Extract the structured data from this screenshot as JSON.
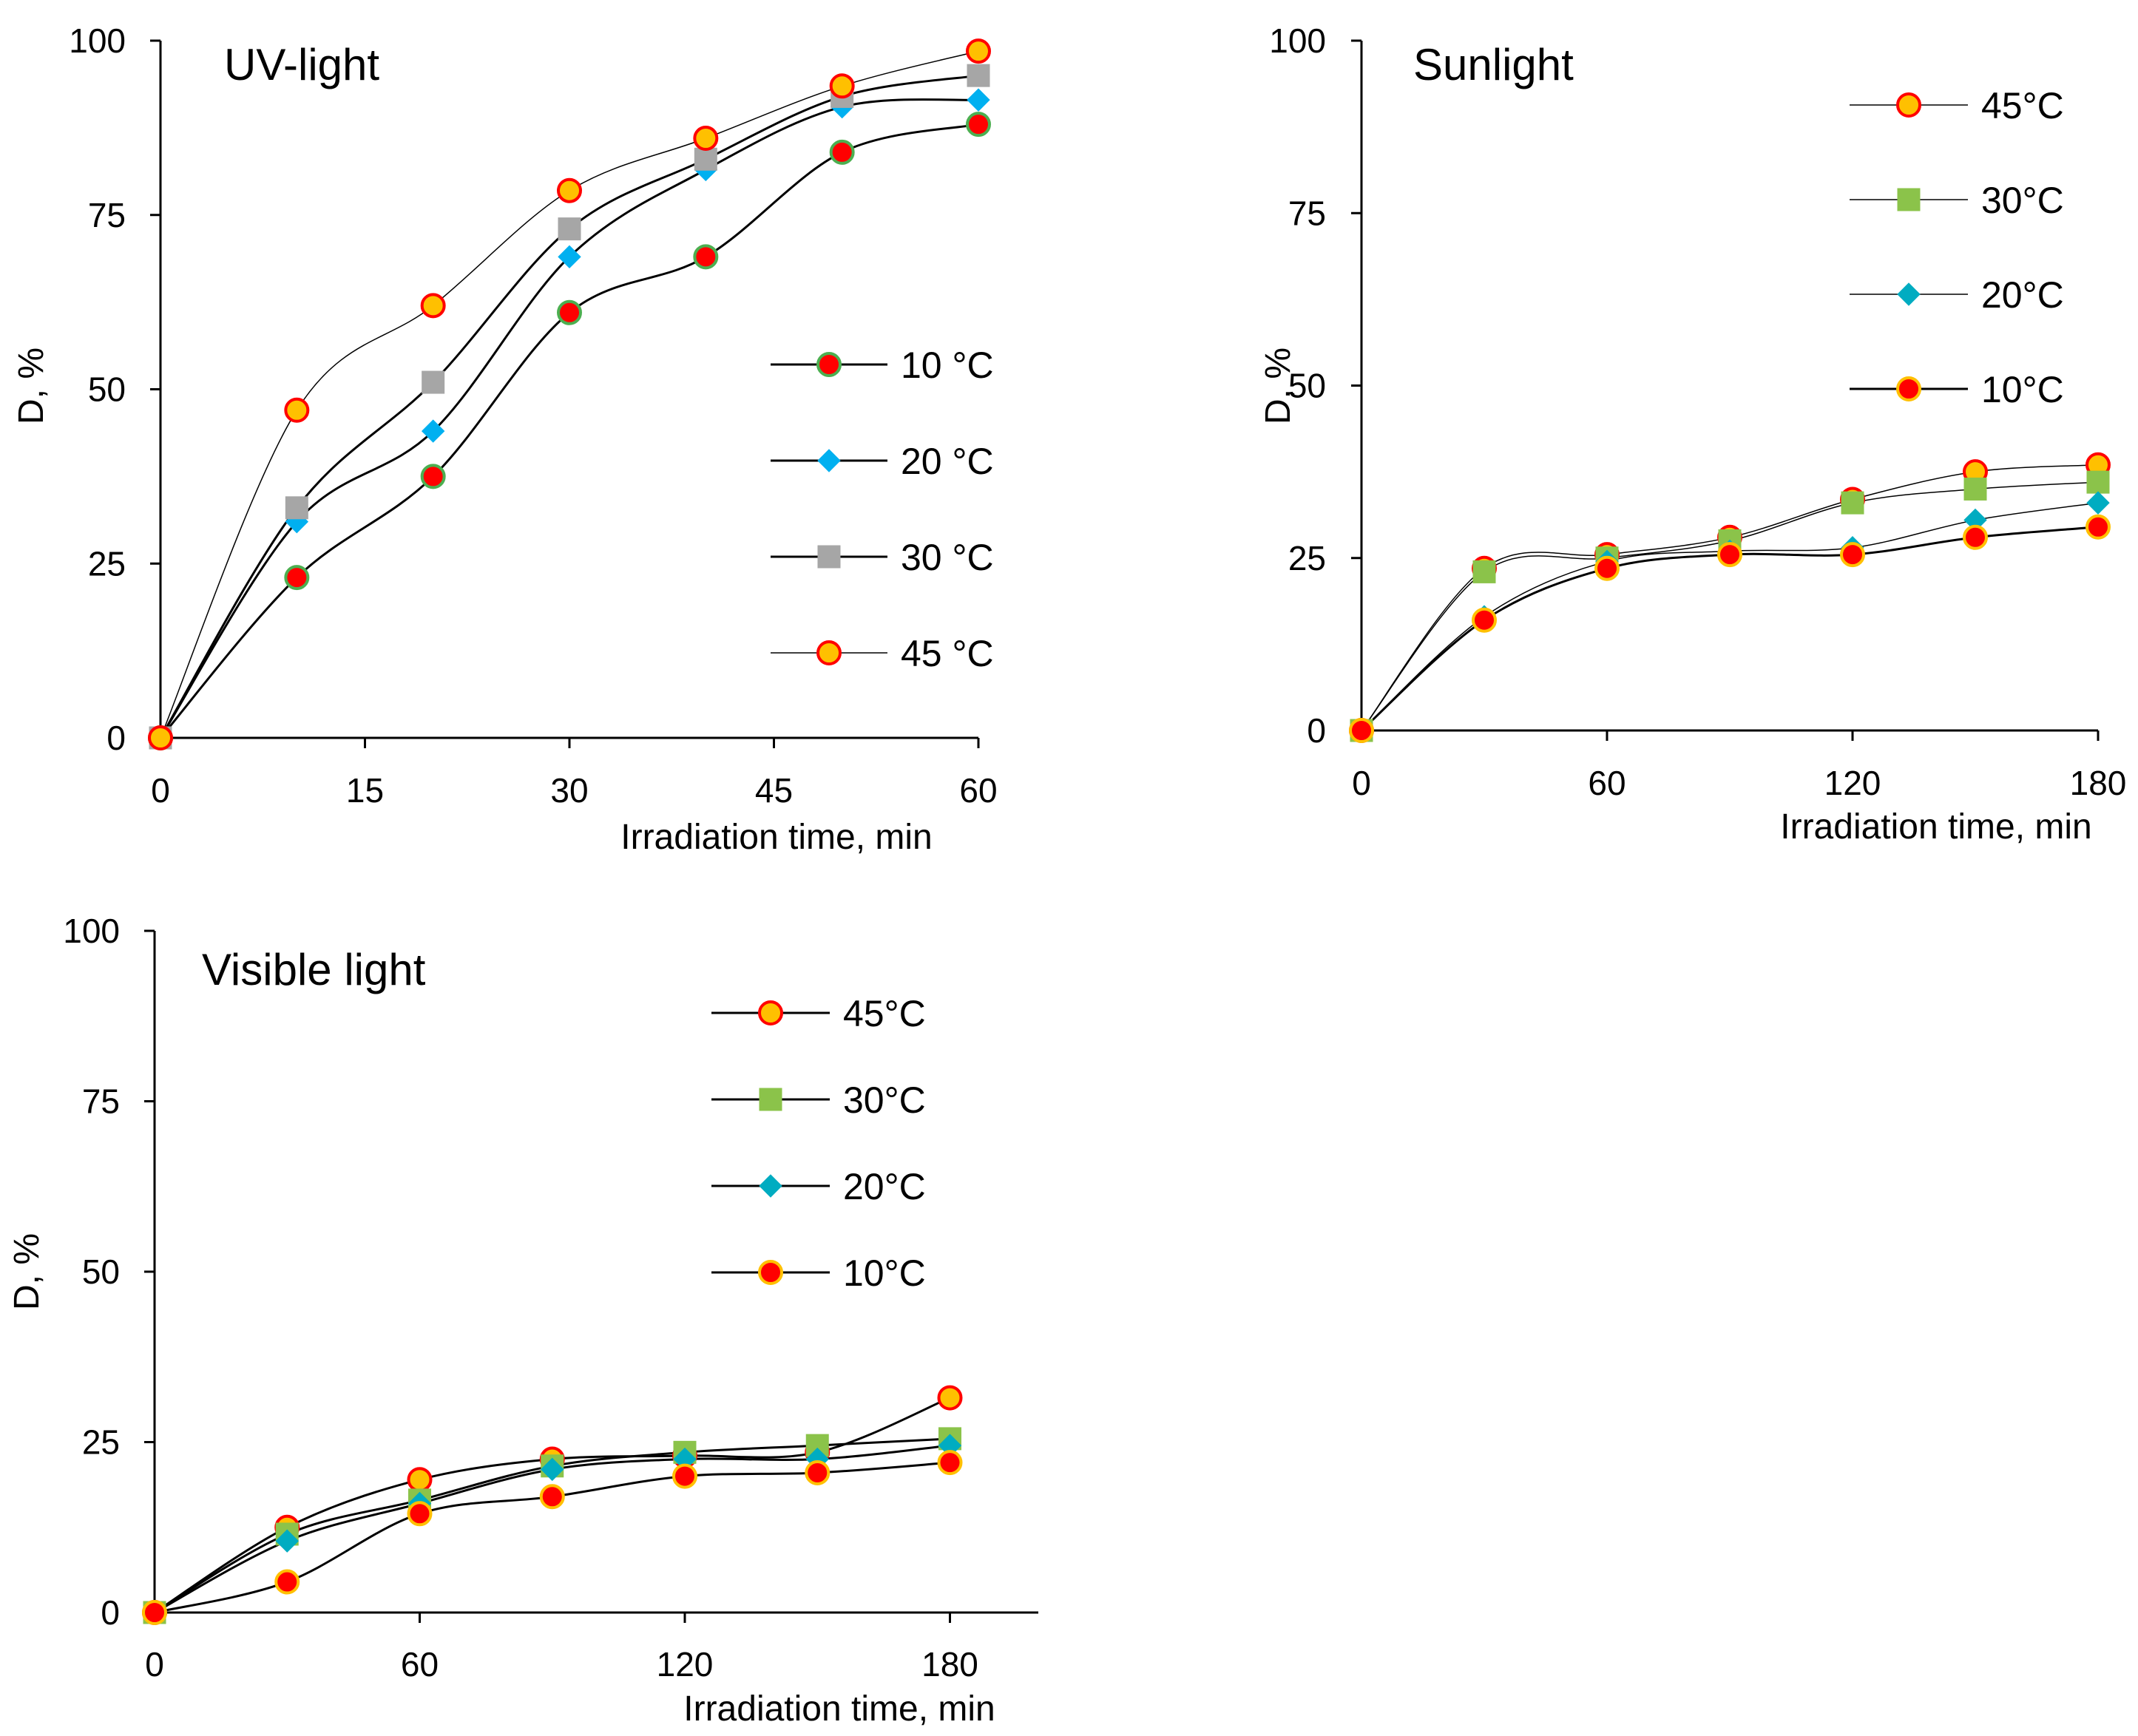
{
  "chart_data": [
    {
      "type": "line",
      "title": "UV-light",
      "xlabel": "Irradiation time, min",
      "ylabel": "D, %",
      "xlim": [
        0,
        60
      ],
      "ylim": [
        0,
        100
      ],
      "xticks": [
        0,
        15,
        30,
        45,
        60
      ],
      "yticks": [
        0,
        25,
        50,
        75,
        100
      ],
      "x": [
        0,
        10,
        20,
        30,
        40,
        50,
        60
      ],
      "legend": "right-middle",
      "series": [
        {
          "name": "10 °C",
          "marker": "circle",
          "fill": "#ff0000",
          "edge": "#4caf50",
          "line_width": 3,
          "values": [
            0,
            23,
            37.5,
            61,
            69,
            84,
            88
          ]
        },
        {
          "name": "20 °C",
          "marker": "diamond",
          "fill": "#00b0f0",
          "edge": "#00b0f0",
          "line_width": 3,
          "values": [
            0,
            31,
            44,
            69,
            81.5,
            90.5,
            91.5
          ]
        },
        {
          "name": "30 °C",
          "marker": "square",
          "fill": "#a6a6a6",
          "edge": "#a6a6a6",
          "line_width": 3,
          "values": [
            0,
            33,
            51,
            73,
            83,
            92,
            95
          ]
        },
        {
          "name": "45 °C",
          "marker": "circle",
          "fill": "#ffc000",
          "edge": "#ff0000",
          "line_width": 1.5,
          "values": [
            0,
            47,
            62,
            78.5,
            86,
            93.5,
            98.5
          ]
        }
      ]
    },
    {
      "type": "line",
      "title": "Sunlight",
      "xlabel": "Irradiation time, min",
      "ylabel": "D, %",
      "xlim": [
        0,
        180
      ],
      "ylim": [
        0,
        100
      ],
      "xticks": [
        0,
        60,
        120,
        180
      ],
      "yticks": [
        0,
        25,
        50,
        75,
        100
      ],
      "x": [
        0,
        30,
        60,
        90,
        120,
        150,
        180
      ],
      "legend": "top-right",
      "series": [
        {
          "name": "45°C",
          "marker": "circle",
          "fill": "#ffc000",
          "edge": "#ff0000",
          "line_width": 1.5,
          "values": [
            0,
            23.5,
            25.5,
            28,
            33.5,
            37.5,
            38.5
          ]
        },
        {
          "name": "30°C",
          "marker": "square",
          "fill": "#8bc34a",
          "edge": "#8bc34a",
          "line_width": 1.5,
          "values": [
            0,
            23,
            25,
            27.5,
            33,
            35,
            36
          ]
        },
        {
          "name": "20°C",
          "marker": "diamond",
          "fill": "#00acc1",
          "edge": "#00acc1",
          "line_width": 1.5,
          "values": [
            0,
            16.5,
            24.5,
            26,
            26.5,
            30.5,
            33
          ]
        },
        {
          "name": "10°C",
          "marker": "circle",
          "fill": "#ff0000",
          "edge": "#ffc000",
          "line_width": 3,
          "values": [
            0,
            16,
            23.5,
            25.5,
            25.5,
            28,
            29.5
          ]
        }
      ]
    },
    {
      "type": "line",
      "title": "Visible light",
      "xlabel": "Irradiation time, min",
      "ylabel": "D, %",
      "xlim": [
        0,
        200
      ],
      "ylim": [
        0,
        100
      ],
      "xticks": [
        0,
        60,
        120,
        180
      ],
      "yticks": [
        0,
        25,
        50,
        75,
        100
      ],
      "x": [
        0,
        30,
        60,
        90,
        120,
        150,
        180
      ],
      "legend": "top-right",
      "series": [
        {
          "name": "45°C",
          "marker": "circle",
          "fill": "#ffc000",
          "edge": "#ff0000",
          "line_width": 3,
          "values": [
            0,
            12.5,
            19.5,
            22.5,
            23,
            23.5,
            31.5
          ]
        },
        {
          "name": "30°C",
          "marker": "square",
          "fill": "#8bc34a",
          "edge": "#8bc34a",
          "line_width": 3,
          "values": [
            0,
            11.5,
            16.5,
            21.5,
            23.5,
            24.5,
            25.5
          ]
        },
        {
          "name": "20°C",
          "marker": "diamond",
          "fill": "#00acc1",
          "edge": "#00acc1",
          "line_width": 3,
          "values": [
            0,
            10.5,
            16,
            21,
            22.5,
            22.5,
            24.5
          ]
        },
        {
          "name": "10°C",
          "marker": "circle",
          "fill": "#ff0000",
          "edge": "#ffc000",
          "line_width": 3,
          "values": [
            0,
            4.5,
            14.5,
            17,
            20,
            20.5,
            22
          ]
        }
      ]
    }
  ]
}
